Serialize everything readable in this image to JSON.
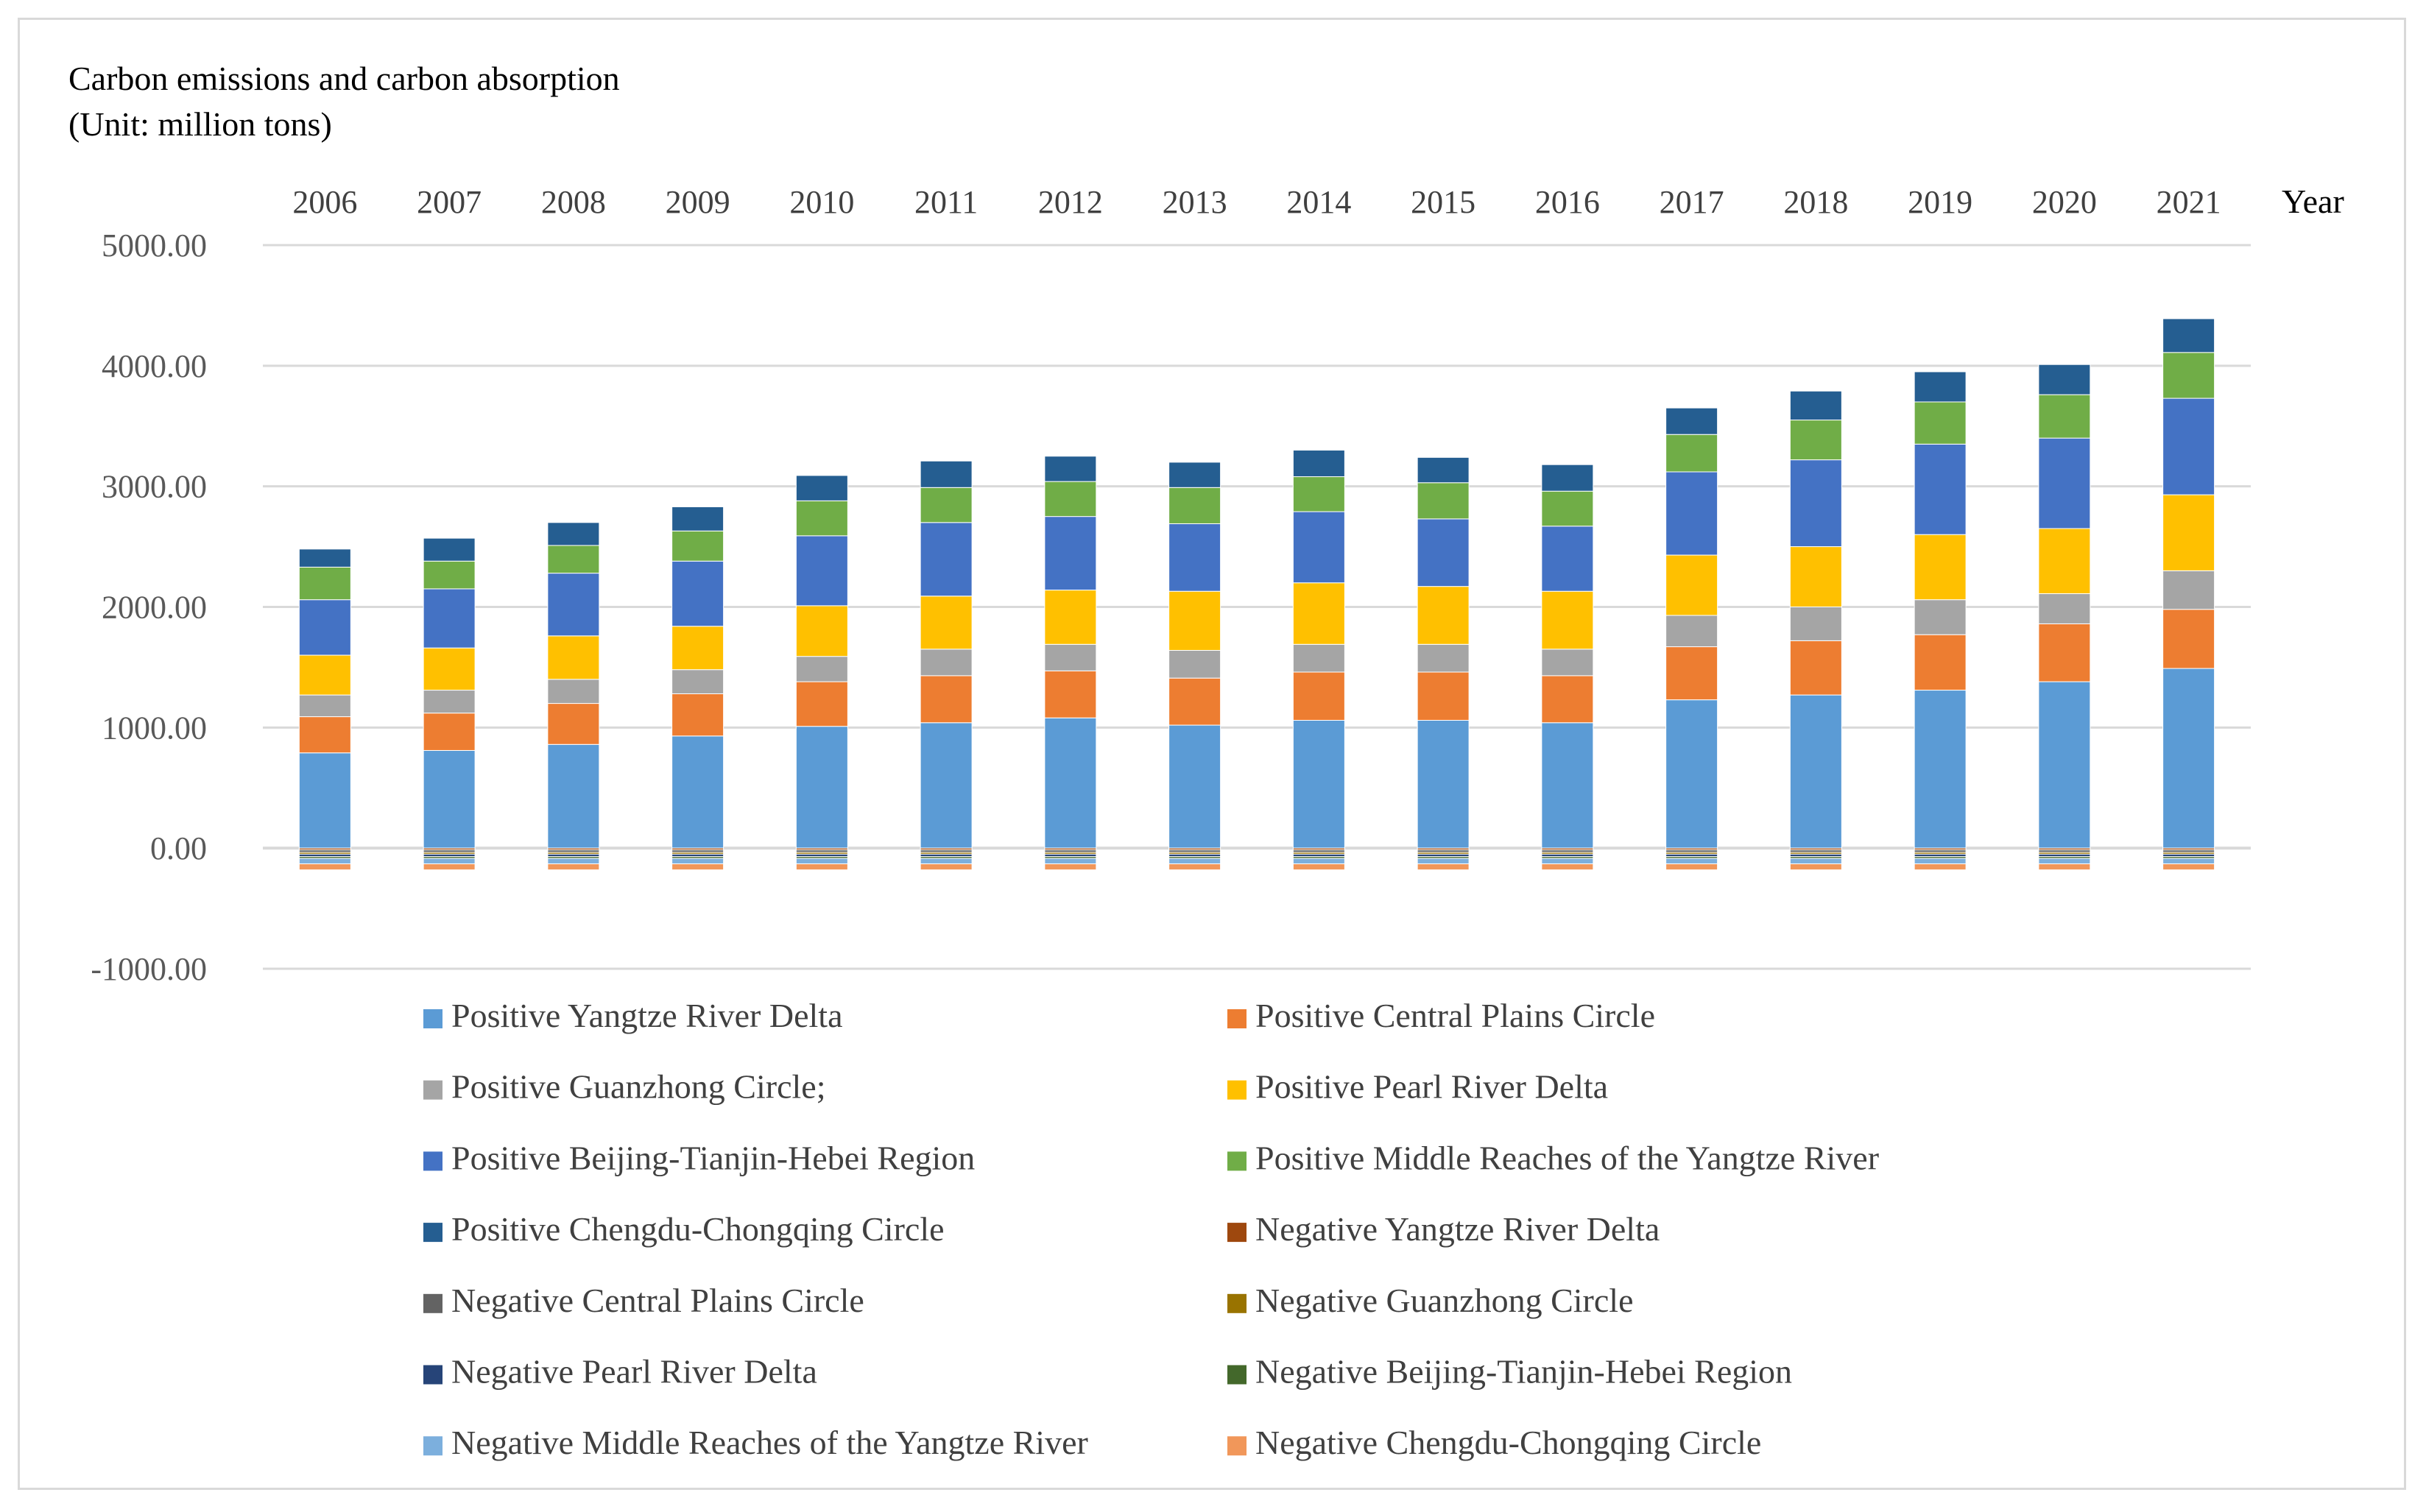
{
  "chart_data": {
    "type": "bar",
    "stacked": true,
    "title": "Carbon emissions and carbon absorption",
    "subtitle": "(Unit:  million  tons)",
    "xlabel": "Year",
    "ylabel": "",
    "ylim": [
      -1000,
      5000
    ],
    "y_ticks": [
      5000,
      4000,
      3000,
      2000,
      1000,
      0,
      -1000
    ],
    "y_tick_labels": [
      "5000.00",
      "4000.00",
      "3000.00",
      "2000.00",
      "1000.00",
      "0.00",
      "-1000.00"
    ],
    "grid": true,
    "x_axis_position": "top",
    "legend_position": "bottom",
    "categories": [
      "2006",
      "2007",
      "2008",
      "2009",
      "2010",
      "2011",
      "2012",
      "2013",
      "2014",
      "2015",
      "2016",
      "2017",
      "2018",
      "2019",
      "2020",
      "2021"
    ],
    "series": [
      {
        "name": "Positive Yangtze River Delta",
        "color": "#5b9bd5",
        "values": [
          790,
          810,
          860,
          930,
          1010,
          1040,
          1080,
          1020,
          1060,
          1060,
          1040,
          1230,
          1270,
          1310,
          1380,
          1490
        ]
      },
      {
        "name": "Positive Central Plains Circle",
        "color": "#ed7d31",
        "values": [
          300,
          310,
          340,
          350,
          370,
          390,
          390,
          390,
          400,
          400,
          390,
          440,
          450,
          460,
          480,
          490
        ]
      },
      {
        "name": "Positive Guanzhong Circle;",
        "color": "#a5a5a5",
        "values": [
          180,
          190,
          200,
          200,
          210,
          220,
          220,
          230,
          230,
          230,
          220,
          260,
          280,
          290,
          250,
          320
        ]
      },
      {
        "name": "Positive Pearl River Delta",
        "color": "#ffc000",
        "values": [
          330,
          350,
          360,
          360,
          420,
          440,
          450,
          490,
          510,
          480,
          480,
          500,
          500,
          540,
          540,
          630
        ]
      },
      {
        "name": "Positive Beijing-Tianjin-Hebei Region",
        "color": "#4472c4",
        "values": [
          460,
          490,
          520,
          540,
          580,
          610,
          610,
          560,
          590,
          560,
          540,
          690,
          720,
          750,
          750,
          800
        ]
      },
      {
        "name": "Positive Middle Reaches of the Yangtze River",
        "color": "#70ad47",
        "values": [
          270,
          230,
          230,
          250,
          290,
          290,
          290,
          300,
          290,
          300,
          290,
          310,
          330,
          350,
          360,
          380
        ]
      },
      {
        "name": "Positive Chengdu-Chongqing Circle",
        "color": "#255e91",
        "values": [
          150,
          190,
          190,
          200,
          210,
          220,
          210,
          210,
          220,
          210,
          220,
          220,
          240,
          250,
          250,
          280
        ]
      },
      {
        "name": "Negative Yangtze River Delta",
        "color": "#9e480e",
        "values": [
          -15,
          -15,
          -15,
          -15,
          -15,
          -15,
          -15,
          -15,
          -15,
          -15,
          -15,
          -15,
          -15,
          -15,
          -15,
          -15
        ]
      },
      {
        "name": "Negative Central Plains Circle",
        "color": "#636363",
        "values": [
          -20,
          -20,
          -20,
          -20,
          -20,
          -20,
          -20,
          -20,
          -20,
          -20,
          -20,
          -20,
          -20,
          -20,
          -20,
          -20
        ]
      },
      {
        "name": "Negative Guanzhong Circle",
        "color": "#997300",
        "values": [
          -15,
          -15,
          -15,
          -15,
          -15,
          -15,
          -15,
          -15,
          -15,
          -15,
          -15,
          -15,
          -15,
          -15,
          -15,
          -15
        ]
      },
      {
        "name": "Negative Pearl River Delta",
        "color": "#264478",
        "values": [
          -20,
          -20,
          -20,
          -20,
          -20,
          -20,
          -20,
          -20,
          -20,
          -20,
          -20,
          -20,
          -20,
          -20,
          -20,
          -20
        ]
      },
      {
        "name": "Negative Beijing-Tianjin-Hebei Region",
        "color": "#43682b",
        "values": [
          -15,
          -15,
          -15,
          -15,
          -15,
          -15,
          -15,
          -15,
          -15,
          -15,
          -15,
          -15,
          -15,
          -15,
          -15,
          -15
        ]
      },
      {
        "name": "Negative Middle Reaches of the Yangtze River",
        "color": "#7cafdd",
        "values": [
          -45,
          -45,
          -45,
          -45,
          -45,
          -45,
          -45,
          -45,
          -45,
          -45,
          -45,
          -45,
          -45,
          -45,
          -45,
          -45
        ]
      },
      {
        "name": "Negative Chengdu-Chongqing Circle",
        "color": "#f1975a",
        "values": [
          -50,
          -50,
          -50,
          -50,
          -50,
          -50,
          -50,
          -50,
          -50,
          -50,
          -50,
          -50,
          -50,
          -50,
          -50,
          -50
        ]
      }
    ]
  }
}
